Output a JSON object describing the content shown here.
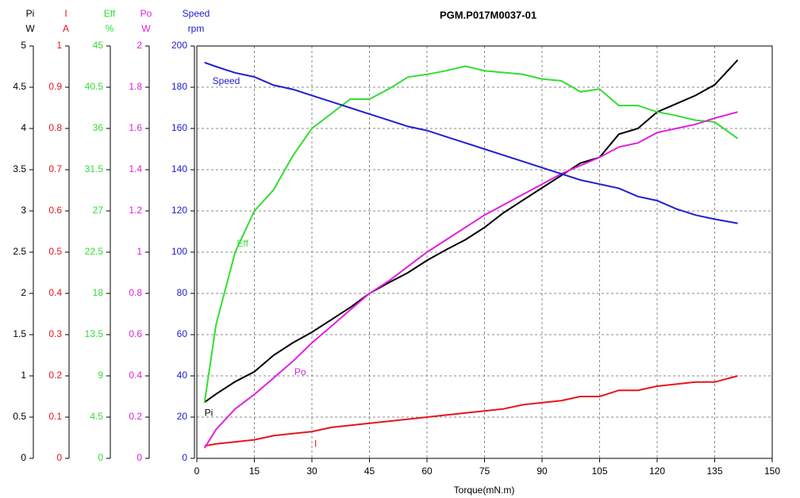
{
  "chart_data": {
    "type": "line",
    "title": "PGM.P017M0037-01",
    "xlabel": "Torque(mN.m)",
    "x": [
      2,
      5,
      10,
      15,
      20,
      25,
      30,
      35,
      40,
      45,
      50,
      55,
      60,
      65,
      70,
      75,
      80,
      85,
      90,
      95,
      100,
      105,
      110,
      115,
      120,
      125,
      130,
      135,
      141
    ],
    "xlim": [
      0,
      150
    ],
    "xticks": [
      0,
      15,
      30,
      45,
      60,
      75,
      90,
      105,
      120,
      135,
      150
    ],
    "grid": true,
    "series": [
      {
        "name": "Pi",
        "unit": "W",
        "color": "#000000",
        "ylim": [
          0,
          5
        ],
        "yticks": [
          0,
          0.5,
          1,
          1.5,
          2,
          2.5,
          3,
          3.5,
          4,
          4.5,
          5
        ],
        "values": [
          0.68,
          0.78,
          0.93,
          1.05,
          1.25,
          1.4,
          1.53,
          1.68,
          1.83,
          2.0,
          2.13,
          2.25,
          2.4,
          2.53,
          2.65,
          2.8,
          2.98,
          3.13,
          3.28,
          3.43,
          3.58,
          3.65,
          3.93,
          4.0,
          4.2,
          4.3,
          4.4,
          4.53,
          4.83
        ]
      },
      {
        "name": "I",
        "unit": "A",
        "color": "#e8141e",
        "ylim": [
          0,
          1
        ],
        "yticks": [
          0,
          0.1,
          0.2,
          0.3,
          0.4,
          0.5,
          0.6,
          0.7,
          0.8,
          0.9,
          1
        ],
        "values": [
          0.03,
          0.035,
          0.04,
          0.045,
          0.055,
          0.06,
          0.065,
          0.075,
          0.08,
          0.085,
          0.09,
          0.095,
          0.1,
          0.105,
          0.11,
          0.115,
          0.12,
          0.13,
          0.135,
          0.14,
          0.15,
          0.15,
          0.165,
          0.165,
          0.175,
          0.18,
          0.185,
          0.185,
          0.2
        ]
      },
      {
        "name": "Eff",
        "unit": "%",
        "color": "#33dd33",
        "ylim": [
          0,
          45
        ],
        "yticks": [
          0,
          4.5,
          9,
          13.5,
          18,
          22.5,
          27,
          31.5,
          36,
          40.5,
          45
        ],
        "values": [
          6.1,
          14.6,
          22.5,
          27,
          29.3,
          33,
          36,
          37.6,
          39.2,
          39.2,
          40.3,
          41.6,
          41.9,
          42.3,
          42.8,
          42.3,
          42.1,
          41.9,
          41.4,
          41.2,
          40,
          40.3,
          38.5,
          38.5,
          37.8,
          37.4,
          36.9,
          36.7,
          34.9
        ]
      },
      {
        "name": "Po",
        "unit": "W",
        "color": "#e020e0",
        "ylim": [
          0,
          2
        ],
        "yticks": [
          0,
          0.2,
          0.4,
          0.6,
          0.8,
          1,
          1.2,
          1.4,
          1.6,
          1.8,
          2
        ],
        "values": [
          0.05,
          0.14,
          0.24,
          0.31,
          0.39,
          0.47,
          0.56,
          0.64,
          0.72,
          0.8,
          0.86,
          0.93,
          1.0,
          1.06,
          1.12,
          1.18,
          1.23,
          1.28,
          1.33,
          1.38,
          1.42,
          1.46,
          1.51,
          1.53,
          1.58,
          1.6,
          1.62,
          1.65,
          1.68
        ]
      },
      {
        "name": "Speed",
        "unit": "rpm",
        "color": "#2020d0",
        "ylim": [
          0,
          200
        ],
        "yticks": [
          0,
          20,
          40,
          60,
          80,
          100,
          120,
          140,
          160,
          180,
          200
        ],
        "values": [
          192,
          190,
          187,
          185,
          181,
          179,
          176,
          173,
          170,
          167,
          164,
          161,
          159,
          156,
          153,
          150,
          147,
          144,
          141,
          138,
          135,
          133,
          131,
          127,
          125,
          121,
          118,
          116,
          114
        ]
      }
    ]
  }
}
